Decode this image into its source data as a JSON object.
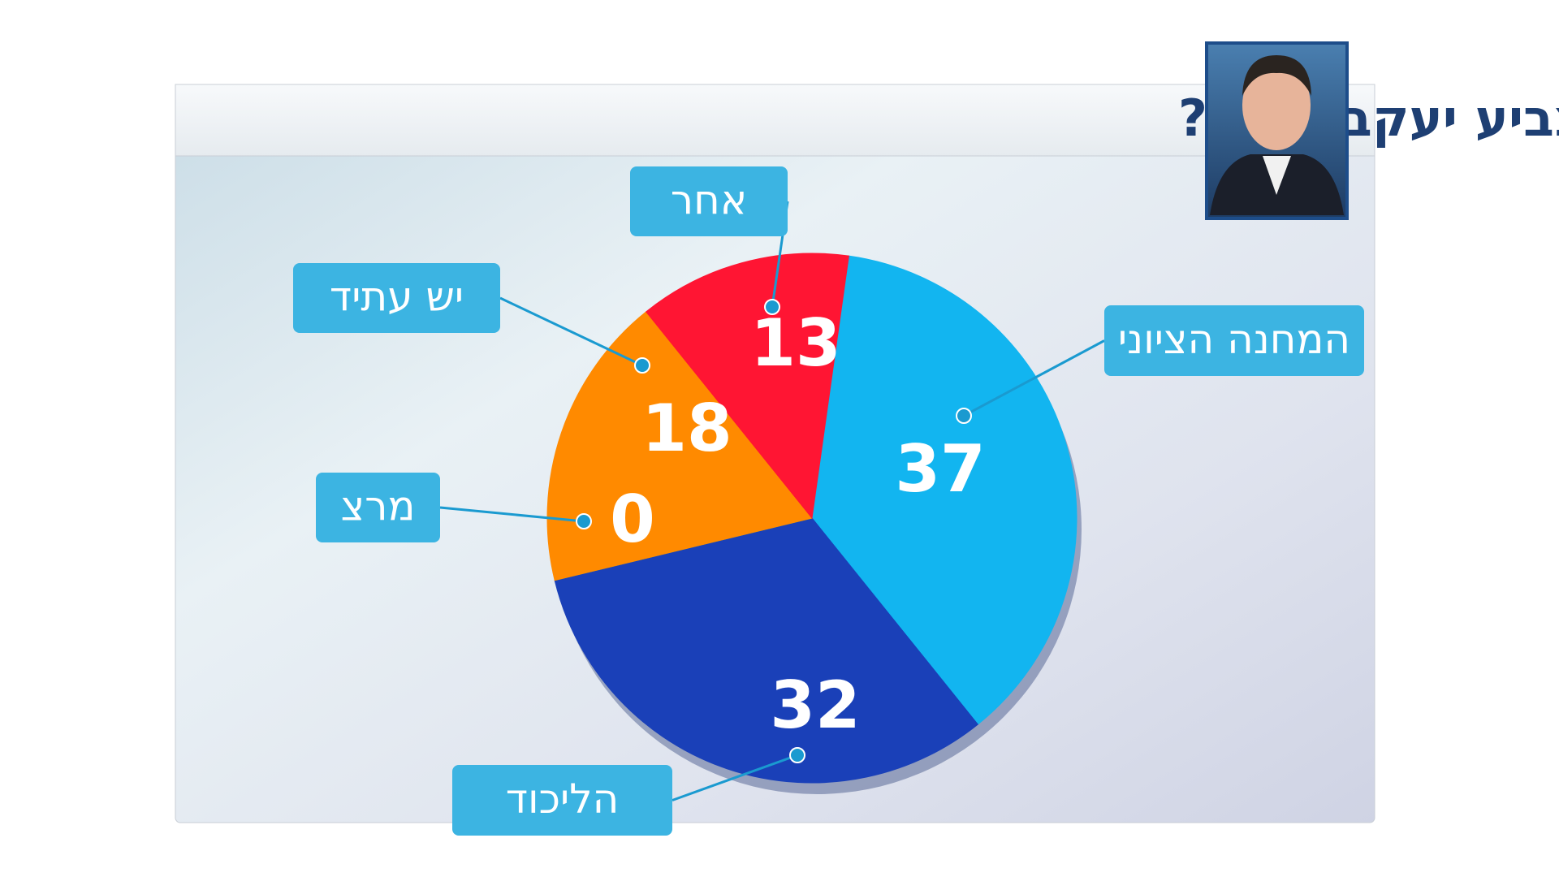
{
  "chart_data": {
    "type": "pie",
    "title": "למי להערכתך יצביע יעקב אילון?",
    "categories": [
      "המחנה הציוני",
      "הליכוד",
      "מרצ",
      "יש עתיד",
      "אחר"
    ],
    "values": [
      37,
      32,
      0,
      18,
      13
    ],
    "colors": [
      "#12b5f0",
      "#1a40b8",
      "#7ab33a",
      "#ff8a00",
      "#ff1533"
    ]
  }
}
